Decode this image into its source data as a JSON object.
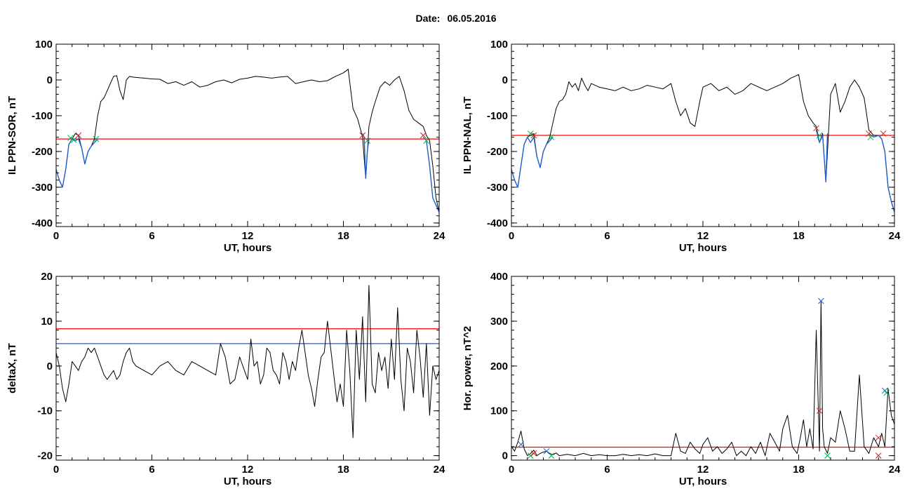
{
  "header": {
    "date_label": "Date:",
    "date_value": "06.05.2016"
  },
  "chart_data": [
    {
      "id": "p1",
      "type": "line",
      "ylabel": "IL PPN-SOR, nT",
      "xlabel": "UT, hours",
      "xlim": [
        0,
        24
      ],
      "ylim": [
        -410,
        100
      ],
      "xticks": [
        0,
        6,
        12,
        18,
        24
      ],
      "yticks": [
        -400,
        -300,
        -200,
        -100,
        0,
        100
      ],
      "threshold_lines": [
        {
          "y": -165,
          "color": "#ff0000"
        }
      ],
      "series": [
        {
          "color": "#000000",
          "x": [
            0,
            0.2,
            0.4,
            0.6,
            0.8,
            1.0,
            1.2,
            1.4,
            1.6,
            1.8,
            2.0,
            2.2,
            2.4,
            2.6,
            2.8,
            3.0,
            3.2,
            3.4,
            3.6,
            3.8,
            4.0,
            4.2,
            4.4,
            4.6,
            4.8,
            5.0,
            5.5,
            6.0,
            6.5,
            7.0,
            7.5,
            8.0,
            8.5,
            9.0,
            9.5,
            10.0,
            10.5,
            11.0,
            11.5,
            12.0,
            12.5,
            13.0,
            13.5,
            14.0,
            14.5,
            15.0,
            15.5,
            16.0,
            16.5,
            17.0,
            17.5,
            18.0,
            18.3,
            18.6,
            18.9,
            19.2,
            19.4,
            19.6,
            19.8,
            20.0,
            20.3,
            20.6,
            20.9,
            21.2,
            21.5,
            21.8,
            22.1,
            22.4,
            22.7,
            23.0,
            23.2,
            23.4,
            23.6,
            23.8,
            24.0
          ],
          "y": [
            -250,
            -280,
            -300,
            -250,
            -180,
            -165,
            -150,
            -155,
            -190,
            -235,
            -200,
            -185,
            -165,
            -100,
            -60,
            -50,
            -30,
            -10,
            10,
            12,
            -30,
            -55,
            0,
            10,
            8,
            7,
            5,
            3,
            2,
            -10,
            -5,
            -15,
            -5,
            -20,
            -15,
            -5,
            0,
            -8,
            2,
            5,
            10,
            8,
            5,
            8,
            10,
            -10,
            -5,
            0,
            -5,
            -2,
            10,
            20,
            30,
            -80,
            -110,
            -160,
            -275,
            -130,
            -90,
            -60,
            -20,
            -5,
            -15,
            0,
            10,
            -30,
            -85,
            -110,
            -120,
            -130,
            -155,
            -170,
            -240,
            -330,
            -370
          ]
        },
        {
          "color": "#1f5fd0",
          "x": [
            0,
            0.2,
            0.4,
            0.6,
            0.8,
            1.0,
            1.2,
            1.4,
            1.6,
            1.8,
            2.0,
            2.2,
            2.4,
            2.6
          ],
          "y": [
            -250,
            -280,
            -300,
            -250,
            -180,
            -165,
            -170,
            -165,
            -190,
            -235,
            -200,
            -185,
            -175,
            -165
          ]
        },
        {
          "color": "#1f5fd0",
          "x": [
            19.2,
            19.3,
            19.4,
            19.5,
            19.6
          ],
          "y": [
            -150,
            -160,
            -275,
            -200,
            -165
          ]
        },
        {
          "color": "#1f5fd0",
          "x": [
            23.0,
            23.2,
            23.4,
            23.6,
            23.8,
            24.0
          ],
          "y": [
            -160,
            -170,
            -240,
            -330,
            -350,
            -370
          ]
        }
      ],
      "markers": [
        {
          "x": 0.9,
          "y": -162,
          "color": "#00b050"
        },
        {
          "x": 1.1,
          "y": -168,
          "color": "#00b050"
        },
        {
          "x": 1.4,
          "y": -155,
          "color": "#d02020"
        },
        {
          "x": 2.5,
          "y": -165,
          "color": "#00b050"
        },
        {
          "x": 19.2,
          "y": -155,
          "color": "#d02020"
        },
        {
          "x": 19.5,
          "y": -170,
          "color": "#00b050"
        },
        {
          "x": 23.0,
          "y": -155,
          "color": "#d02020"
        },
        {
          "x": 23.2,
          "y": -170,
          "color": "#00b050"
        }
      ]
    },
    {
      "id": "p2",
      "type": "line",
      "ylabel": "IL PPN-NAL, nT",
      "xlabel": "UT, hours",
      "xlim": [
        0,
        24
      ],
      "ylim": [
        -410,
        100
      ],
      "xticks": [
        0,
        6,
        12,
        18,
        24
      ],
      "yticks": [
        -400,
        -300,
        -200,
        -100,
        0,
        100
      ],
      "threshold_lines": [
        {
          "y": -155,
          "color": "#ff0000"
        }
      ],
      "series": [
        {
          "color": "#000000",
          "x": [
            0,
            0.2,
            0.4,
            0.6,
            0.8,
            1.0,
            1.2,
            1.4,
            1.6,
            1.8,
            2.0,
            2.2,
            2.4,
            2.6,
            2.8,
            3.0,
            3.2,
            3.4,
            3.6,
            3.8,
            4.0,
            4.2,
            4.4,
            4.6,
            4.8,
            5.0,
            5.5,
            6.0,
            6.5,
            7.0,
            7.5,
            8.0,
            8.5,
            9.0,
            9.5,
            10.0,
            10.3,
            10.6,
            10.9,
            11.2,
            11.5,
            11.8,
            12.0,
            12.5,
            13.0,
            13.5,
            14.0,
            14.5,
            15.0,
            15.5,
            16.0,
            16.5,
            17.0,
            17.5,
            18.0,
            18.3,
            18.6,
            18.9,
            19.1,
            19.3,
            19.5,
            19.7,
            20.0,
            20.3,
            20.6,
            20.9,
            21.2,
            21.5,
            21.8,
            22.1,
            22.4,
            22.7,
            23.0,
            23.2,
            23.4,
            23.6,
            23.8,
            24.0
          ],
          "y": [
            -250,
            -280,
            -300,
            -240,
            -180,
            -160,
            -155,
            -150,
            -215,
            -245,
            -200,
            -180,
            -160,
            -120,
            -80,
            -60,
            -55,
            -40,
            -5,
            -20,
            -10,
            -30,
            5,
            -15,
            -30,
            -10,
            -20,
            -25,
            -30,
            -20,
            -30,
            -25,
            -15,
            -20,
            -25,
            -10,
            -60,
            -100,
            -80,
            -120,
            -130,
            -60,
            -20,
            -10,
            -30,
            -20,
            -40,
            -30,
            -10,
            -20,
            -30,
            -20,
            -10,
            5,
            15,
            -60,
            -100,
            -120,
            -130,
            -175,
            -150,
            -285,
            -40,
            -10,
            -90,
            -60,
            -20,
            0,
            -20,
            -50,
            -140,
            -155,
            -155,
            -165,
            -200,
            -300,
            -340,
            -370
          ]
        },
        {
          "color": "#1f5fd0",
          "x": [
            0,
            0.2,
            0.4,
            0.6,
            0.8,
            1.0,
            1.2,
            1.4,
            1.6,
            1.8,
            2.0,
            2.2,
            2.4,
            2.6
          ],
          "y": [
            -250,
            -280,
            -300,
            -240,
            -180,
            -160,
            -175,
            -160,
            -215,
            -245,
            -200,
            -180,
            -170,
            -160
          ]
        },
        {
          "color": "#1f5fd0",
          "x": [
            19.1,
            19.3,
            19.5,
            19.7,
            19.8
          ],
          "y": [
            -140,
            -175,
            -155,
            -285,
            -150
          ]
        },
        {
          "color": "#1f5fd0",
          "x": [
            22.4,
            22.7,
            23.0,
            23.2,
            23.4,
            23.6,
            23.8,
            24.0
          ],
          "y": [
            -150,
            -160,
            -155,
            -165,
            -200,
            -300,
            -340,
            -370
          ]
        }
      ],
      "markers": [
        {
          "x": 1.2,
          "y": -150,
          "color": "#00b050"
        },
        {
          "x": 1.4,
          "y": -155,
          "color": "#d02020"
        },
        {
          "x": 2.5,
          "y": -160,
          "color": "#00b050"
        },
        {
          "x": 19.1,
          "y": -135,
          "color": "#d02020"
        },
        {
          "x": 19.3,
          "y": -155,
          "color": "#00b050"
        },
        {
          "x": 22.4,
          "y": -150,
          "color": "#d02020"
        },
        {
          "x": 22.5,
          "y": -160,
          "color": "#00b050"
        },
        {
          "x": 23.3,
          "y": -150,
          "color": "#d02020"
        }
      ]
    },
    {
      "id": "p3",
      "type": "line",
      "ylabel": "deltaX, nT",
      "xlabel": "UT, hours",
      "xlim": [
        0,
        24
      ],
      "ylim": [
        -21,
        20
      ],
      "xticks": [
        0,
        6,
        12,
        18,
        24
      ],
      "yticks": [
        -20,
        -10,
        0,
        10,
        20
      ],
      "threshold_lines": [
        {
          "y": 8.3,
          "color": "#ff0000"
        },
        {
          "y": 5.0,
          "color": "#1f5fd0"
        }
      ],
      "series": [
        {
          "color": "#000000",
          "x": [
            0,
            0.2,
            0.4,
            0.6,
            0.8,
            1.0,
            1.2,
            1.4,
            1.6,
            1.8,
            2.0,
            2.2,
            2.4,
            2.6,
            2.8,
            3.0,
            3.2,
            3.4,
            3.6,
            3.8,
            4.0,
            4.2,
            4.4,
            4.6,
            4.8,
            5.0,
            5.5,
            6.0,
            6.5,
            7.0,
            7.5,
            8.0,
            8.5,
            9.0,
            9.5,
            10.0,
            10.3,
            10.6,
            10.9,
            11.2,
            11.5,
            11.8,
            12.0,
            12.2,
            12.4,
            12.6,
            12.8,
            13.0,
            13.2,
            13.4,
            13.6,
            13.8,
            14.0,
            14.2,
            14.4,
            14.6,
            14.8,
            15.0,
            15.2,
            15.4,
            15.6,
            15.8,
            16.0,
            16.2,
            16.4,
            16.6,
            16.8,
            17.0,
            17.2,
            17.4,
            17.6,
            17.8,
            18.0,
            18.2,
            18.4,
            18.6,
            18.8,
            19.0,
            19.2,
            19.4,
            19.6,
            19.8,
            20.0,
            20.2,
            20.4,
            20.6,
            20.8,
            21.0,
            21.2,
            21.4,
            21.6,
            21.8,
            22.0,
            22.2,
            22.4,
            22.6,
            22.8,
            23.0,
            23.2,
            23.4,
            23.6,
            23.8,
            24.0
          ],
          "y": [
            3,
            0,
            -5,
            -8,
            -4,
            1,
            0,
            -1,
            1,
            2,
            4,
            3,
            4,
            2,
            0,
            -2,
            -3,
            -2,
            -1,
            -3,
            -2,
            1,
            3,
            4,
            1,
            0,
            -1,
            -2,
            0,
            1,
            -1,
            -2,
            1,
            0,
            -1,
            -2,
            5,
            2,
            -4,
            -3,
            2,
            -1,
            -3,
            6,
            0,
            1,
            -4,
            -2,
            4,
            3,
            -1,
            -2,
            -4,
            3,
            1,
            -3,
            1,
            -1,
            4,
            8,
            3,
            -2,
            -5,
            -9,
            -3,
            2,
            3,
            10,
            4,
            -2,
            -8,
            -4,
            -9,
            8,
            -1,
            -16,
            8,
            -3,
            11,
            -8,
            18,
            -4,
            -6,
            3,
            -1,
            2,
            -5,
            6,
            -3,
            13,
            -3,
            -10,
            4,
            1,
            -6,
            8,
            2,
            -7,
            5,
            -11,
            0,
            -3,
            -1
          ]
        }
      ],
      "markers": []
    },
    {
      "id": "p4",
      "type": "line",
      "ylabel": "Hor. power, nT^2",
      "xlabel": "UT, hours",
      "xlim": [
        0,
        24
      ],
      "ylim": [
        -10,
        400
      ],
      "xticks": [
        0,
        6,
        12,
        18,
        24
      ],
      "yticks": [
        0,
        100,
        200,
        300,
        400
      ],
      "threshold_lines": [
        {
          "y": 19,
          "color": "#ff0000"
        }
      ],
      "series": [
        {
          "color": "#000000",
          "x": [
            0,
            0.2,
            0.4,
            0.6,
            0.8,
            1.0,
            1.2,
            1.4,
            1.6,
            1.8,
            2.0,
            2.2,
            2.4,
            2.6,
            2.8,
            3.0,
            3.5,
            4.0,
            4.5,
            5.0,
            5.5,
            6.0,
            6.5,
            7.0,
            7.5,
            8.0,
            8.5,
            9.0,
            9.5,
            10.0,
            10.3,
            10.6,
            10.9,
            11.2,
            11.5,
            11.8,
            12.0,
            12.3,
            12.6,
            12.9,
            13.2,
            13.5,
            13.8,
            14.1,
            14.4,
            14.7,
            15.0,
            15.3,
            15.6,
            15.9,
            16.2,
            16.5,
            16.8,
            17.0,
            17.3,
            17.6,
            17.9,
            18.1,
            18.3,
            18.5,
            18.7,
            18.9,
            19.1,
            19.3,
            19.4,
            19.5,
            19.6,
            19.8,
            20.0,
            20.3,
            20.6,
            20.9,
            21.2,
            21.5,
            21.8,
            22.1,
            22.4,
            22.7,
            23.0,
            23.2,
            23.4,
            23.6,
            23.8,
            24.0
          ],
          "y": [
            20,
            10,
            30,
            55,
            15,
            0,
            5,
            12,
            0,
            5,
            8,
            10,
            5,
            2,
            6,
            0,
            3,
            0,
            5,
            0,
            2,
            0,
            0,
            3,
            0,
            2,
            0,
            4,
            0,
            0,
            50,
            10,
            5,
            30,
            15,
            5,
            25,
            40,
            10,
            20,
            5,
            15,
            30,
            0,
            10,
            0,
            20,
            5,
            30,
            0,
            50,
            30,
            10,
            60,
            90,
            20,
            5,
            40,
            80,
            20,
            60,
            15,
            280,
            10,
            345,
            60,
            20,
            5,
            40,
            30,
            100,
            60,
            10,
            10,
            180,
            20,
            5,
            40,
            20,
            50,
            20,
            150,
            90,
            70
          ]
        }
      ],
      "markers": [
        {
          "x": 0.6,
          "y": 25,
          "color": "#1f5fd0"
        },
        {
          "x": 1.2,
          "y": 0,
          "color": "#00b050"
        },
        {
          "x": 1.4,
          "y": 5,
          "color": "#d02020"
        },
        {
          "x": 2.5,
          "y": 0,
          "color": "#00b050"
        },
        {
          "x": 2.2,
          "y": 10,
          "color": "#1f5fd0"
        },
        {
          "x": 19.3,
          "y": 100,
          "color": "#d02020"
        },
        {
          "x": 19.4,
          "y": 345,
          "color": "#1f5fd0"
        },
        {
          "x": 19.8,
          "y": 0,
          "color": "#00b050"
        },
        {
          "x": 23.0,
          "y": 0,
          "color": "#d02020"
        },
        {
          "x": 23.0,
          "y": 40,
          "color": "#d02020"
        },
        {
          "x": 23.4,
          "y": 145,
          "color": "#1f5fd0"
        },
        {
          "x": 23.5,
          "y": 140,
          "color": "#00b050"
        }
      ]
    }
  ]
}
